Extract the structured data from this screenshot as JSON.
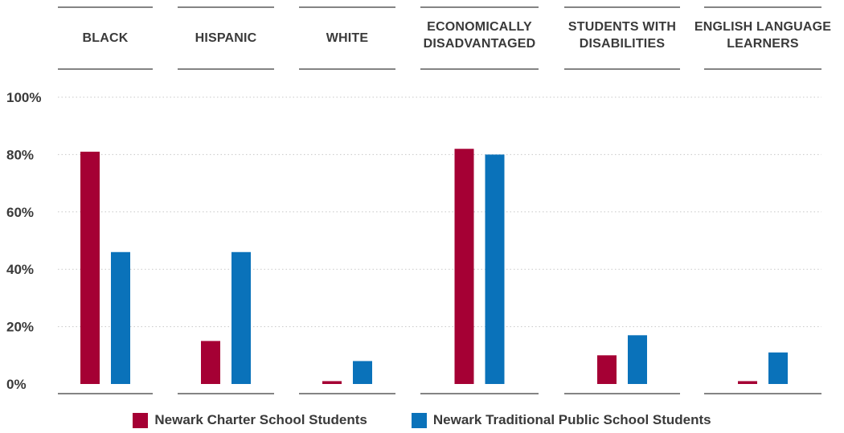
{
  "chart_data": {
    "type": "bar",
    "categories": [
      [
        "BLACK"
      ],
      [
        "HISPANIC"
      ],
      [
        "WHITE"
      ],
      [
        "ECONOMICALLY",
        "DISADVANTAGED"
      ],
      [
        "STUDENTS WITH",
        "DISABILITIES"
      ],
      [
        "ENGLISH LANGUAGE",
        "LEARNERS"
      ]
    ],
    "series": [
      {
        "name": "Newark Charter School Students",
        "color": "#a50034",
        "values": [
          81,
          15,
          1,
          82,
          10,
          1
        ]
      },
      {
        "name": "Newark Traditional Public School Students",
        "color": "#0a72ba",
        "values": [
          46,
          46,
          8,
          80,
          17,
          11
        ]
      }
    ],
    "y_ticks": [
      "0%",
      "20%",
      "40%",
      "60%",
      "80%",
      "100%"
    ],
    "ylim": [
      0,
      100
    ],
    "grid": true,
    "legend_position": "bottom-center"
  }
}
